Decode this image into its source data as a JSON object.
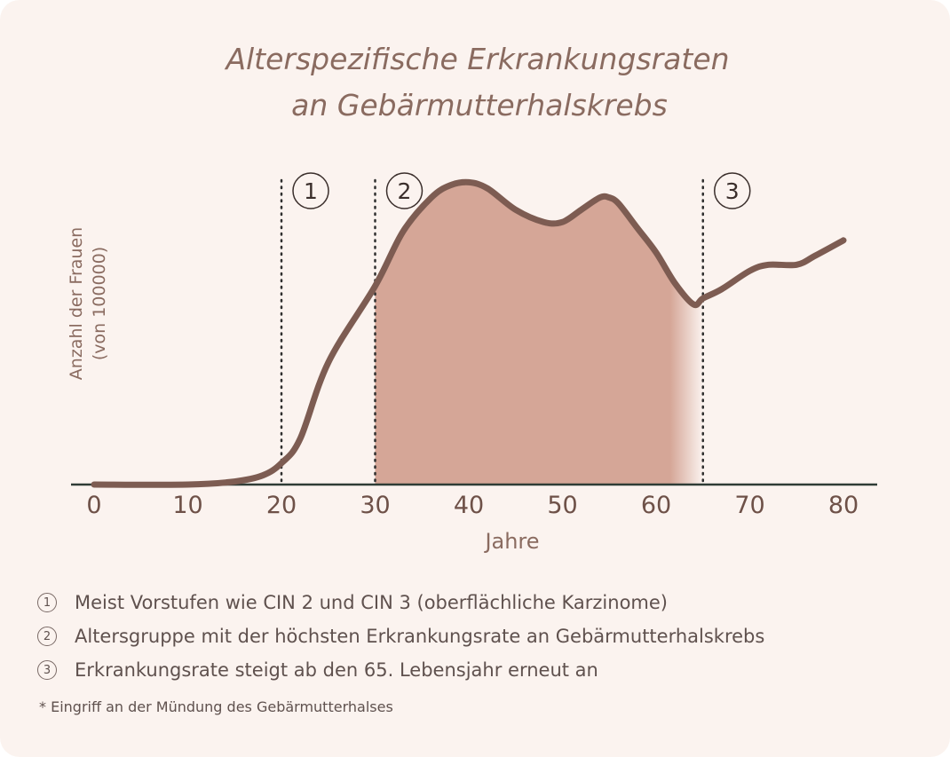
{
  "chart_data": {
    "type": "line",
    "title": "Alterspezifische Erkrankungsraten an Gebärmutterhalskrebs",
    "title_lines": [
      "Alterspezifische Erkrankungsraten",
      "an Gebärmutterhalskrebs"
    ],
    "xlabel": "Jahre",
    "ylabel": "Anzahl der Frauen",
    "ylabel_sub": "(von 100000)",
    "x_ticks": [
      0,
      10,
      20,
      30,
      40,
      50,
      60,
      70,
      80
    ],
    "xlim": [
      0,
      84
    ],
    "ylim": [
      0,
      100
    ],
    "x": [
      0,
      10,
      15,
      18,
      20,
      22,
      25,
      30,
      33,
      36,
      38,
      40,
      42,
      45,
      48,
      50,
      52,
      54,
      55,
      56,
      58,
      60,
      62,
      64,
      65,
      67,
      70,
      72,
      75,
      77,
      80
    ],
    "values": [
      0,
      0,
      1,
      3,
      7,
      15,
      40,
      65,
      83,
      94,
      98,
      99,
      97,
      90,
      86,
      86,
      90,
      94,
      94,
      92,
      84,
      76,
      66,
      59,
      61,
      64,
      70,
      72,
      72,
      75,
      80
    ],
    "shaded_region": [
      30,
      65
    ],
    "dividers": [
      {
        "x": 20,
        "label": "1"
      },
      {
        "x": 30,
        "label": "2"
      },
      {
        "x": 65,
        "label": "3"
      }
    ],
    "grid": false,
    "legend": "none",
    "colors": {
      "line": "#7d5c52",
      "fill": "#d5a697",
      "axis": "#2f3c36",
      "background": "#fbf3ef"
    }
  },
  "notes": [
    {
      "num": "1",
      "text": "Meist Vorstufen wie CIN 2 und CIN 3 (oberflächliche Karzinome)"
    },
    {
      "num": "2",
      "text": "Altersgruppe mit der höchsten Erkrankungsrate an Gebärmutterhalskrebs"
    },
    {
      "num": "3",
      "text": "Erkrankungsrate steigt ab den 65. Lebensjahr erneut an"
    }
  ],
  "footnote": "* Eingriff an der Mündung des Gebärmutterhalses"
}
